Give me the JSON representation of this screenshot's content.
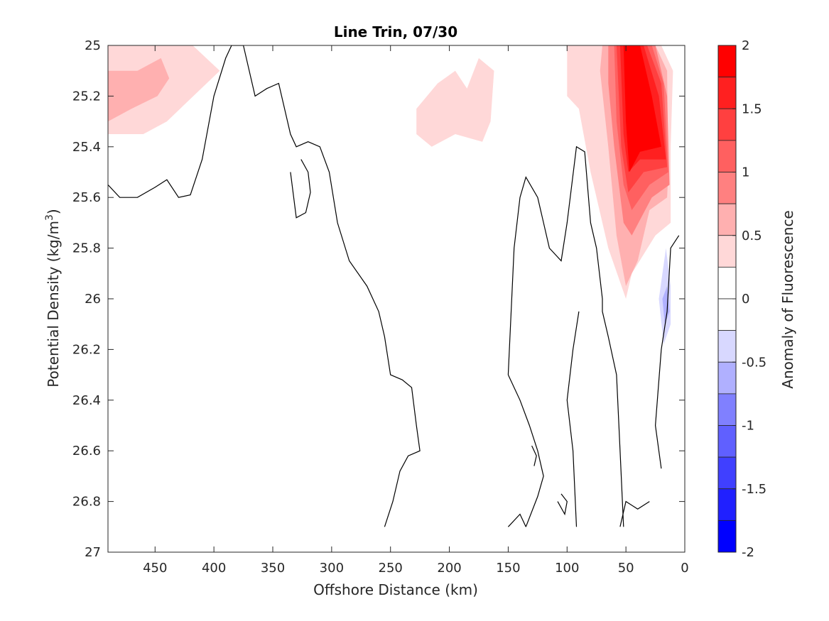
{
  "chart_data": {
    "type": "heatmap",
    "subtype": "filled-contour",
    "title": "Line Trin, 07/30",
    "xlabel": "Offshore Distance (km)",
    "ylabel": "Potential Density (kg/m",
    "ylabel_superscript": "3",
    "ylabel_suffix": ")",
    "xlim": [
      490,
      0
    ],
    "x_reversed": true,
    "ylim": [
      25,
      27
    ],
    "y_reversed": true,
    "x_ticks": [
      450,
      400,
      350,
      300,
      250,
      200,
      150,
      100,
      50,
      0
    ],
    "y_ticks": [
      25,
      25.2,
      25.4,
      25.6,
      25.8,
      26,
      26.2,
      26.4,
      26.6,
      26.8,
      27
    ],
    "colorbar": {
      "label": "Anomaly of Fluorescence",
      "range": [
        -2,
        2
      ],
      "ticks": [
        2,
        1.5,
        1,
        0.5,
        0,
        -0.5,
        -1,
        -1.5,
        -2
      ],
      "levels": [
        {
          "from": 1.75,
          "to": 2,
          "color": "#ff0000"
        },
        {
          "from": 1.5,
          "to": 1.75,
          "color": "#ff2020"
        },
        {
          "from": 1.25,
          "to": 1.5,
          "color": "#ff4040"
        },
        {
          "from": 1,
          "to": 1.25,
          "color": "#ff6060"
        },
        {
          "from": 0.75,
          "to": 1,
          "color": "#ff8080"
        },
        {
          "from": 0.5,
          "to": 0.75,
          "color": "#ffb0b0"
        },
        {
          "from": 0.25,
          "to": 0.5,
          "color": "#ffd8d8"
        },
        {
          "from": 0,
          "to": 0.25,
          "color": "#ffffff"
        },
        {
          "from": -0.25,
          "to": 0,
          "color": "#ffffff"
        },
        {
          "from": -0.5,
          "to": -0.25,
          "color": "#d8d8ff"
        },
        {
          "from": -0.75,
          "to": -0.5,
          "color": "#b0b0ff"
        },
        {
          "from": -1,
          "to": -0.75,
          "color": "#8080ff"
        },
        {
          "from": -1.25,
          "to": -1,
          "color": "#6060ff"
        },
        {
          "from": -1.5,
          "to": -1.25,
          "color": "#4040ff"
        },
        {
          "from": -1.75,
          "to": -1.5,
          "color": "#2020ff"
        },
        {
          "from": -2,
          "to": -1.75,
          "color": "#0000ff"
        }
      ]
    },
    "filled_regions": [
      {
        "level": 0.25,
        "color": "#ffd8d8",
        "points": [
          [
            490,
            25
          ],
          [
            418,
            25
          ],
          [
            395,
            25.1
          ],
          [
            440,
            25.3
          ],
          [
            460,
            25.35
          ],
          [
            490,
            25.35
          ]
        ]
      },
      {
        "level": 0.5,
        "color": "#ffb0b0",
        "points": [
          [
            490,
            25.1
          ],
          [
            465,
            25.1
          ],
          [
            445,
            25.05
          ],
          [
            438,
            25.13
          ],
          [
            448,
            25.2
          ],
          [
            470,
            25.25
          ],
          [
            490,
            25.3
          ]
        ]
      },
      {
        "level": 0.25,
        "color": "#ffd8d8",
        "points": [
          [
            228,
            25.25
          ],
          [
            210,
            25.15
          ],
          [
            195,
            25.1
          ],
          [
            185,
            25.17
          ],
          [
            175,
            25.05
          ],
          [
            162,
            25.1
          ],
          [
            165,
            25.3
          ],
          [
            172,
            25.38
          ],
          [
            195,
            25.35
          ],
          [
            215,
            25.4
          ],
          [
            228,
            25.35
          ]
        ]
      },
      {
        "level": 0.25,
        "color": "#ffd8d8",
        "points": [
          [
            100,
            25
          ],
          [
            20,
            25
          ],
          [
            10,
            25.1
          ],
          [
            12,
            25.4
          ],
          [
            12,
            25.7
          ],
          [
            25,
            25.75
          ],
          [
            45,
            25.9
          ],
          [
            50,
            26
          ],
          [
            65,
            25.8
          ],
          [
            80,
            25.5
          ],
          [
            90,
            25.25
          ],
          [
            100,
            25.2
          ]
        ]
      },
      {
        "level": 0.5,
        "color": "#ffb0b0",
        "points": [
          [
            70,
            25
          ],
          [
            25,
            25
          ],
          [
            15,
            25.1
          ],
          [
            14,
            25.5
          ],
          [
            15,
            25.6
          ],
          [
            30,
            25.65
          ],
          [
            40,
            25.85
          ],
          [
            50,
            25.95
          ],
          [
            58,
            25.75
          ],
          [
            65,
            25.4
          ],
          [
            72,
            25.1
          ]
        ]
      },
      {
        "level": 0.75,
        "color": "#ff8080",
        "points": [
          [
            65,
            25
          ],
          [
            25,
            25
          ],
          [
            15,
            25.2
          ],
          [
            13,
            25.55
          ],
          [
            28,
            25.6
          ],
          [
            45,
            25.75
          ],
          [
            52,
            25.7
          ],
          [
            60,
            25.4
          ],
          [
            65,
            25.15
          ]
        ]
      },
      {
        "level": 1.0,
        "color": "#ff6060",
        "points": [
          [
            60,
            25
          ],
          [
            28,
            25
          ],
          [
            18,
            25.15
          ],
          [
            14,
            25.5
          ],
          [
            30,
            25.55
          ],
          [
            45,
            25.65
          ],
          [
            52,
            25.55
          ],
          [
            58,
            25.3
          ]
        ]
      },
      {
        "level": 1.25,
        "color": "#ff4040",
        "points": [
          [
            58,
            25
          ],
          [
            32,
            25
          ],
          [
            20,
            25.15
          ],
          [
            15,
            25.48
          ],
          [
            35,
            25.5
          ],
          [
            48,
            25.58
          ],
          [
            54,
            25.4
          ]
        ]
      },
      {
        "level": 1.5,
        "color": "#ff2020",
        "points": [
          [
            55,
            25
          ],
          [
            35,
            25
          ],
          [
            22,
            25.2
          ],
          [
            16,
            25.45
          ],
          [
            38,
            25.45
          ],
          [
            48,
            25.5
          ],
          [
            52,
            25.35
          ]
        ]
      },
      {
        "level": 1.75,
        "color": "#ff0000",
        "points": [
          [
            52,
            25
          ],
          [
            38,
            25
          ],
          [
            28,
            25.2
          ],
          [
            20,
            25.4
          ],
          [
            38,
            25.42
          ],
          [
            47,
            25.5
          ],
          [
            50,
            25.3
          ]
        ]
      },
      {
        "level": -0.25,
        "color": "#d8d8ff",
        "points": [
          [
            16,
            25.8
          ],
          [
            12,
            25.95
          ],
          [
            12,
            26.1
          ],
          [
            18,
            26.18
          ],
          [
            22,
            26
          ]
        ]
      },
      {
        "level": -0.5,
        "color": "#b0b0ff",
        "points": [
          [
            15,
            25.95
          ],
          [
            13,
            26.05
          ],
          [
            17,
            26.1
          ],
          [
            19,
            26
          ]
        ]
      }
    ],
    "zero_contours": [
      [
        [
          490,
          25.55
        ],
        [
          480,
          25.6
        ],
        [
          465,
          25.6
        ],
        [
          450,
          25.56
        ],
        [
          440,
          25.53
        ],
        [
          430,
          25.6
        ],
        [
          420,
          25.59
        ],
        [
          410,
          25.45
        ],
        [
          400,
          25.2
        ],
        [
          390,
          25.05
        ],
        [
          385,
          25
        ],
        [
          375,
          25
        ],
        [
          365,
          25.2
        ],
        [
          355,
          25.17
        ],
        [
          345,
          25.15
        ],
        [
          335,
          25.35
        ],
        [
          330,
          25.4
        ],
        [
          320,
          25.38
        ],
        [
          310,
          25.4
        ],
        [
          302,
          25.5
        ],
        [
          295,
          25.7
        ],
        [
          285,
          25.85
        ],
        [
          270,
          25.95
        ],
        [
          260,
          26.05
        ],
        [
          255,
          26.15
        ],
        [
          250,
          26.3
        ],
        [
          240,
          26.32
        ],
        [
          232,
          26.35
        ],
        [
          228,
          26.5
        ],
        [
          225,
          26.6
        ],
        [
          235,
          26.62
        ],
        [
          242,
          26.68
        ],
        [
          248,
          26.8
        ],
        [
          255,
          26.9
        ]
      ],
      [
        [
          326,
          25.45
        ],
        [
          320,
          25.5
        ],
        [
          318,
          25.58
        ],
        [
          322,
          25.66
        ],
        [
          330,
          25.68
        ],
        [
          335,
          25.5
        ]
      ],
      [
        [
          150,
          26.9
        ],
        [
          140,
          26.85
        ],
        [
          135,
          26.9
        ]
      ],
      [
        [
          150,
          26.3
        ],
        [
          140,
          26.4
        ],
        [
          132,
          26.5
        ],
        [
          125,
          26.6
        ],
        [
          120,
          26.7
        ],
        [
          125,
          26.78
        ],
        [
          135,
          26.9
        ]
      ],
      [
        [
          150,
          26.3
        ],
        [
          145,
          25.8
        ],
        [
          140,
          25.6
        ],
        [
          135,
          25.52
        ],
        [
          125,
          25.6
        ],
        [
          115,
          25.8
        ],
        [
          105,
          25.85
        ],
        [
          100,
          25.7
        ],
        [
          92,
          25.4
        ],
        [
          85,
          25.42
        ],
        [
          80,
          25.7
        ],
        [
          75,
          25.8
        ],
        [
          70,
          26
        ],
        [
          70,
          26.05
        ],
        [
          65,
          26.15
        ],
        [
          58,
          26.3
        ],
        [
          55,
          26.6
        ],
        [
          52,
          26.9
        ]
      ],
      [
        [
          130,
          26.58
        ],
        [
          126,
          26.62
        ],
        [
          128,
          26.66
        ]
      ],
      [
        [
          105,
          26.77
        ],
        [
          100,
          26.8
        ],
        [
          102,
          26.85
        ],
        [
          108,
          26.8
        ]
      ],
      [
        [
          92,
          26.9
        ],
        [
          95,
          26.6
        ],
        [
          100,
          26.4
        ],
        [
          95,
          26.2
        ],
        [
          90,
          26.05
        ]
      ],
      [
        [
          55,
          26.9
        ],
        [
          50,
          26.8
        ],
        [
          40,
          26.83
        ],
        [
          30,
          26.8
        ]
      ],
      [
        [
          20,
          26.67
        ],
        [
          25,
          26.5
        ],
        [
          20,
          26.2
        ],
        [
          15,
          26.05
        ],
        [
          12,
          25.8
        ],
        [
          5,
          25.75
        ]
      ]
    ]
  }
}
